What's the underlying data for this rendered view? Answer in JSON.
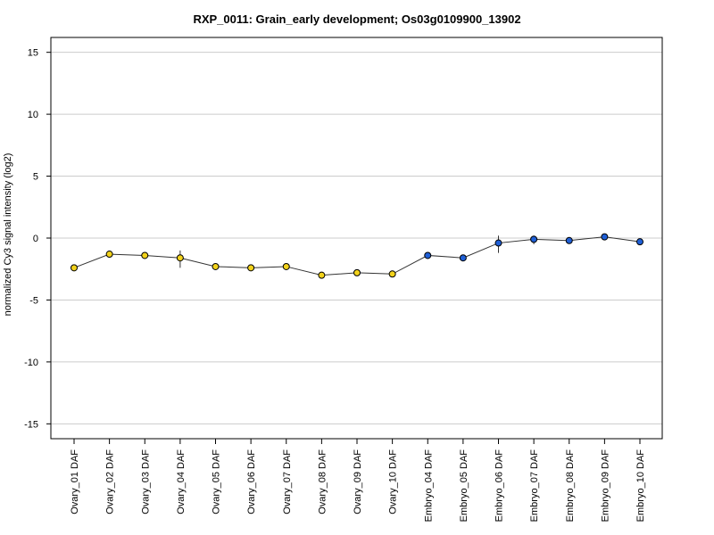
{
  "chart_data": {
    "type": "line",
    "title": "RXP_0011: Grain_early development; Os03g0109900_13902",
    "ylabel": "normalized Cy3 signal intensity (log2)",
    "xlabel": "",
    "ylim": [
      -16.2,
      16.2
    ],
    "yticks": [
      15,
      10,
      5,
      0,
      -5,
      -10,
      -15
    ],
    "ytick_labels": [
      "15",
      "10",
      "5",
      "0",
      "-5",
      "-10",
      "-15"
    ],
    "grid": true,
    "categories": [
      "Ovary_01 DAF",
      "Ovary_02 DAF",
      "Ovary_03 DAF",
      "Ovary_04 DAF",
      "Ovary_05 DAF",
      "Ovary_06 DAF",
      "Ovary_07 DAF",
      "Ovary_08 DAF",
      "Ovary_09 DAF",
      "Ovary_10 DAF",
      "Embryo_04 DAF",
      "Embryo_05 DAF",
      "Embryo_06 DAF",
      "Embryo_07 DAF",
      "Embryo_08 DAF",
      "Embryo_09 DAF",
      "Embryo_10 DAF"
    ],
    "values": [
      -2.4,
      -1.3,
      -1.4,
      -1.6,
      -2.3,
      -2.4,
      -2.3,
      -3.0,
      -2.8,
      -2.9,
      -1.4,
      -1.6,
      -0.4,
      -0.1,
      -0.2,
      0.1,
      -0.3
    ],
    "error_low": [
      0,
      0,
      0,
      -2.4,
      0,
      0,
      0,
      0,
      0,
      0,
      0,
      0,
      -1.2,
      -0.5,
      0,
      0,
      0
    ],
    "error_high": [
      0,
      0,
      0,
      -1.0,
      0,
      0,
      0,
      0,
      0,
      0,
      0,
      0,
      0.2,
      0.2,
      0,
      0,
      0
    ],
    "point_colors": [
      "#f2d21b",
      "#f2d21b",
      "#f2d21b",
      "#f2d21b",
      "#f2d21b",
      "#f2d21b",
      "#f2d21b",
      "#f2d21b",
      "#f2d21b",
      "#f2d21b",
      "#1f5fd6",
      "#1f5fd6",
      "#1f5fd6",
      "#1f5fd6",
      "#1f5fd6",
      "#1f5fd6",
      "#1f5fd6"
    ],
    "line_color": "#333333",
    "grid_color": "#cccccc"
  }
}
